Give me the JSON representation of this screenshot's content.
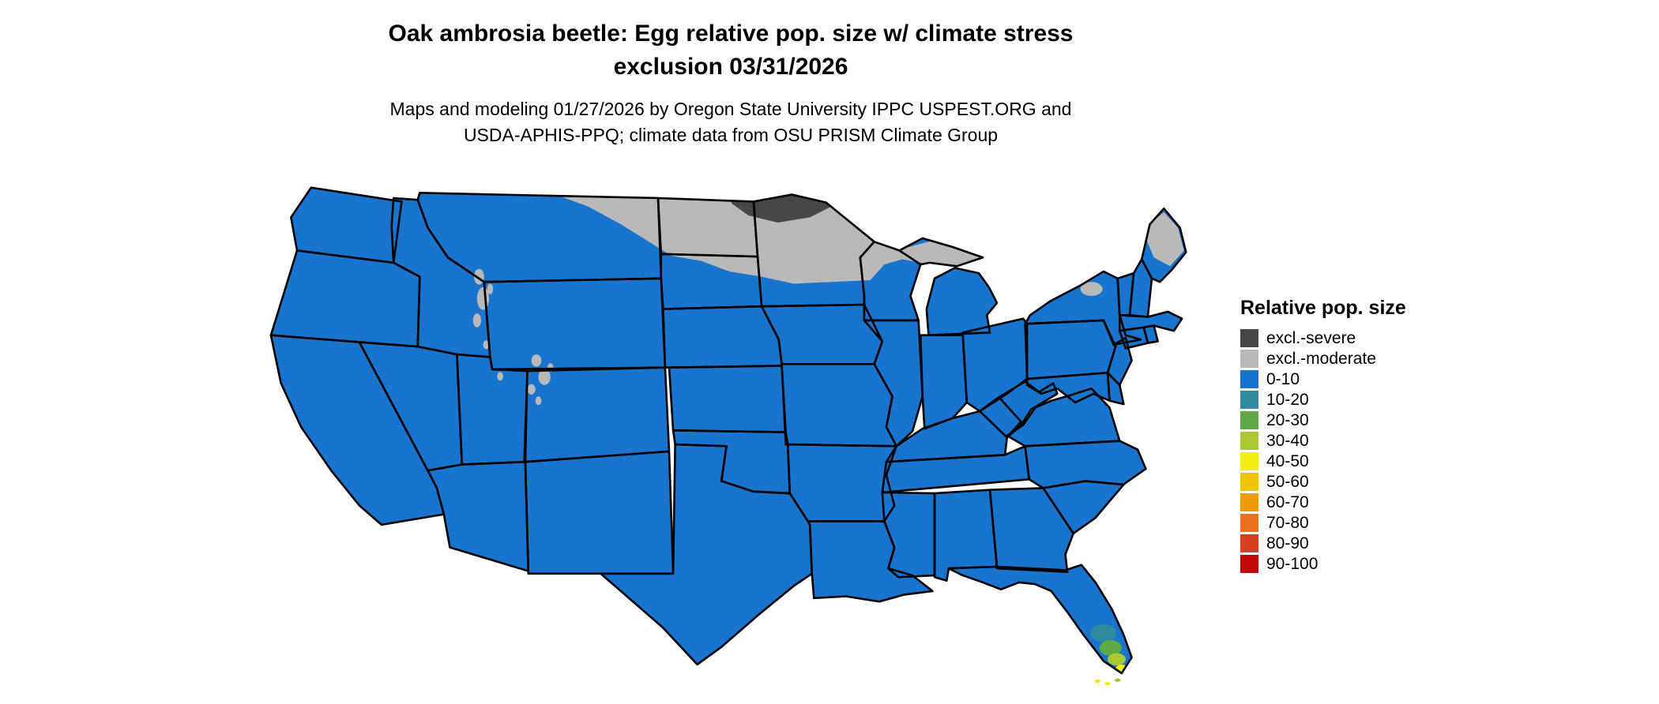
{
  "header": {
    "title_line1": "Oak ambrosia beetle: Egg relative pop. size w/ climate stress",
    "title_line2": "exclusion 03/31/2026",
    "subtitle_line1": "Maps and modeling 01/27/2026 by Oregon State University IPPC USPEST.ORG and",
    "subtitle_line2": "USDA-APHIS-PPQ; climate data from OSU PRISM Climate Group"
  },
  "legend": {
    "title": "Relative pop. size",
    "items": [
      {
        "label": "excl.-severe",
        "color": "#474747"
      },
      {
        "label": "excl.-moderate",
        "color": "#b9b9b9"
      },
      {
        "label": "0-10",
        "color": "#1874cd"
      },
      {
        "label": "10-20",
        "color": "#2e8b9e"
      },
      {
        "label": "20-30",
        "color": "#5fa848"
      },
      {
        "label": "30-40",
        "color": "#aac832"
      },
      {
        "label": "40-50",
        "color": "#f2ee0f"
      },
      {
        "label": "50-60",
        "color": "#f0c400"
      },
      {
        "label": "60-70",
        "color": "#ef9c00"
      },
      {
        "label": "70-80",
        "color": "#e8701f"
      },
      {
        "label": "80-90",
        "color": "#d6401f"
      },
      {
        "label": "90-100",
        "color": "#c00a0a"
      }
    ]
  },
  "map": {
    "region": "Continental United States",
    "base_class": "0-10",
    "border_color": "#000000",
    "background_color": "#ffffff",
    "overlay_classes_shown": [
      "excl.-severe",
      "excl.-moderate",
      "0-10",
      "10-20",
      "20-30",
      "30-40",
      "40-50"
    ]
  }
}
